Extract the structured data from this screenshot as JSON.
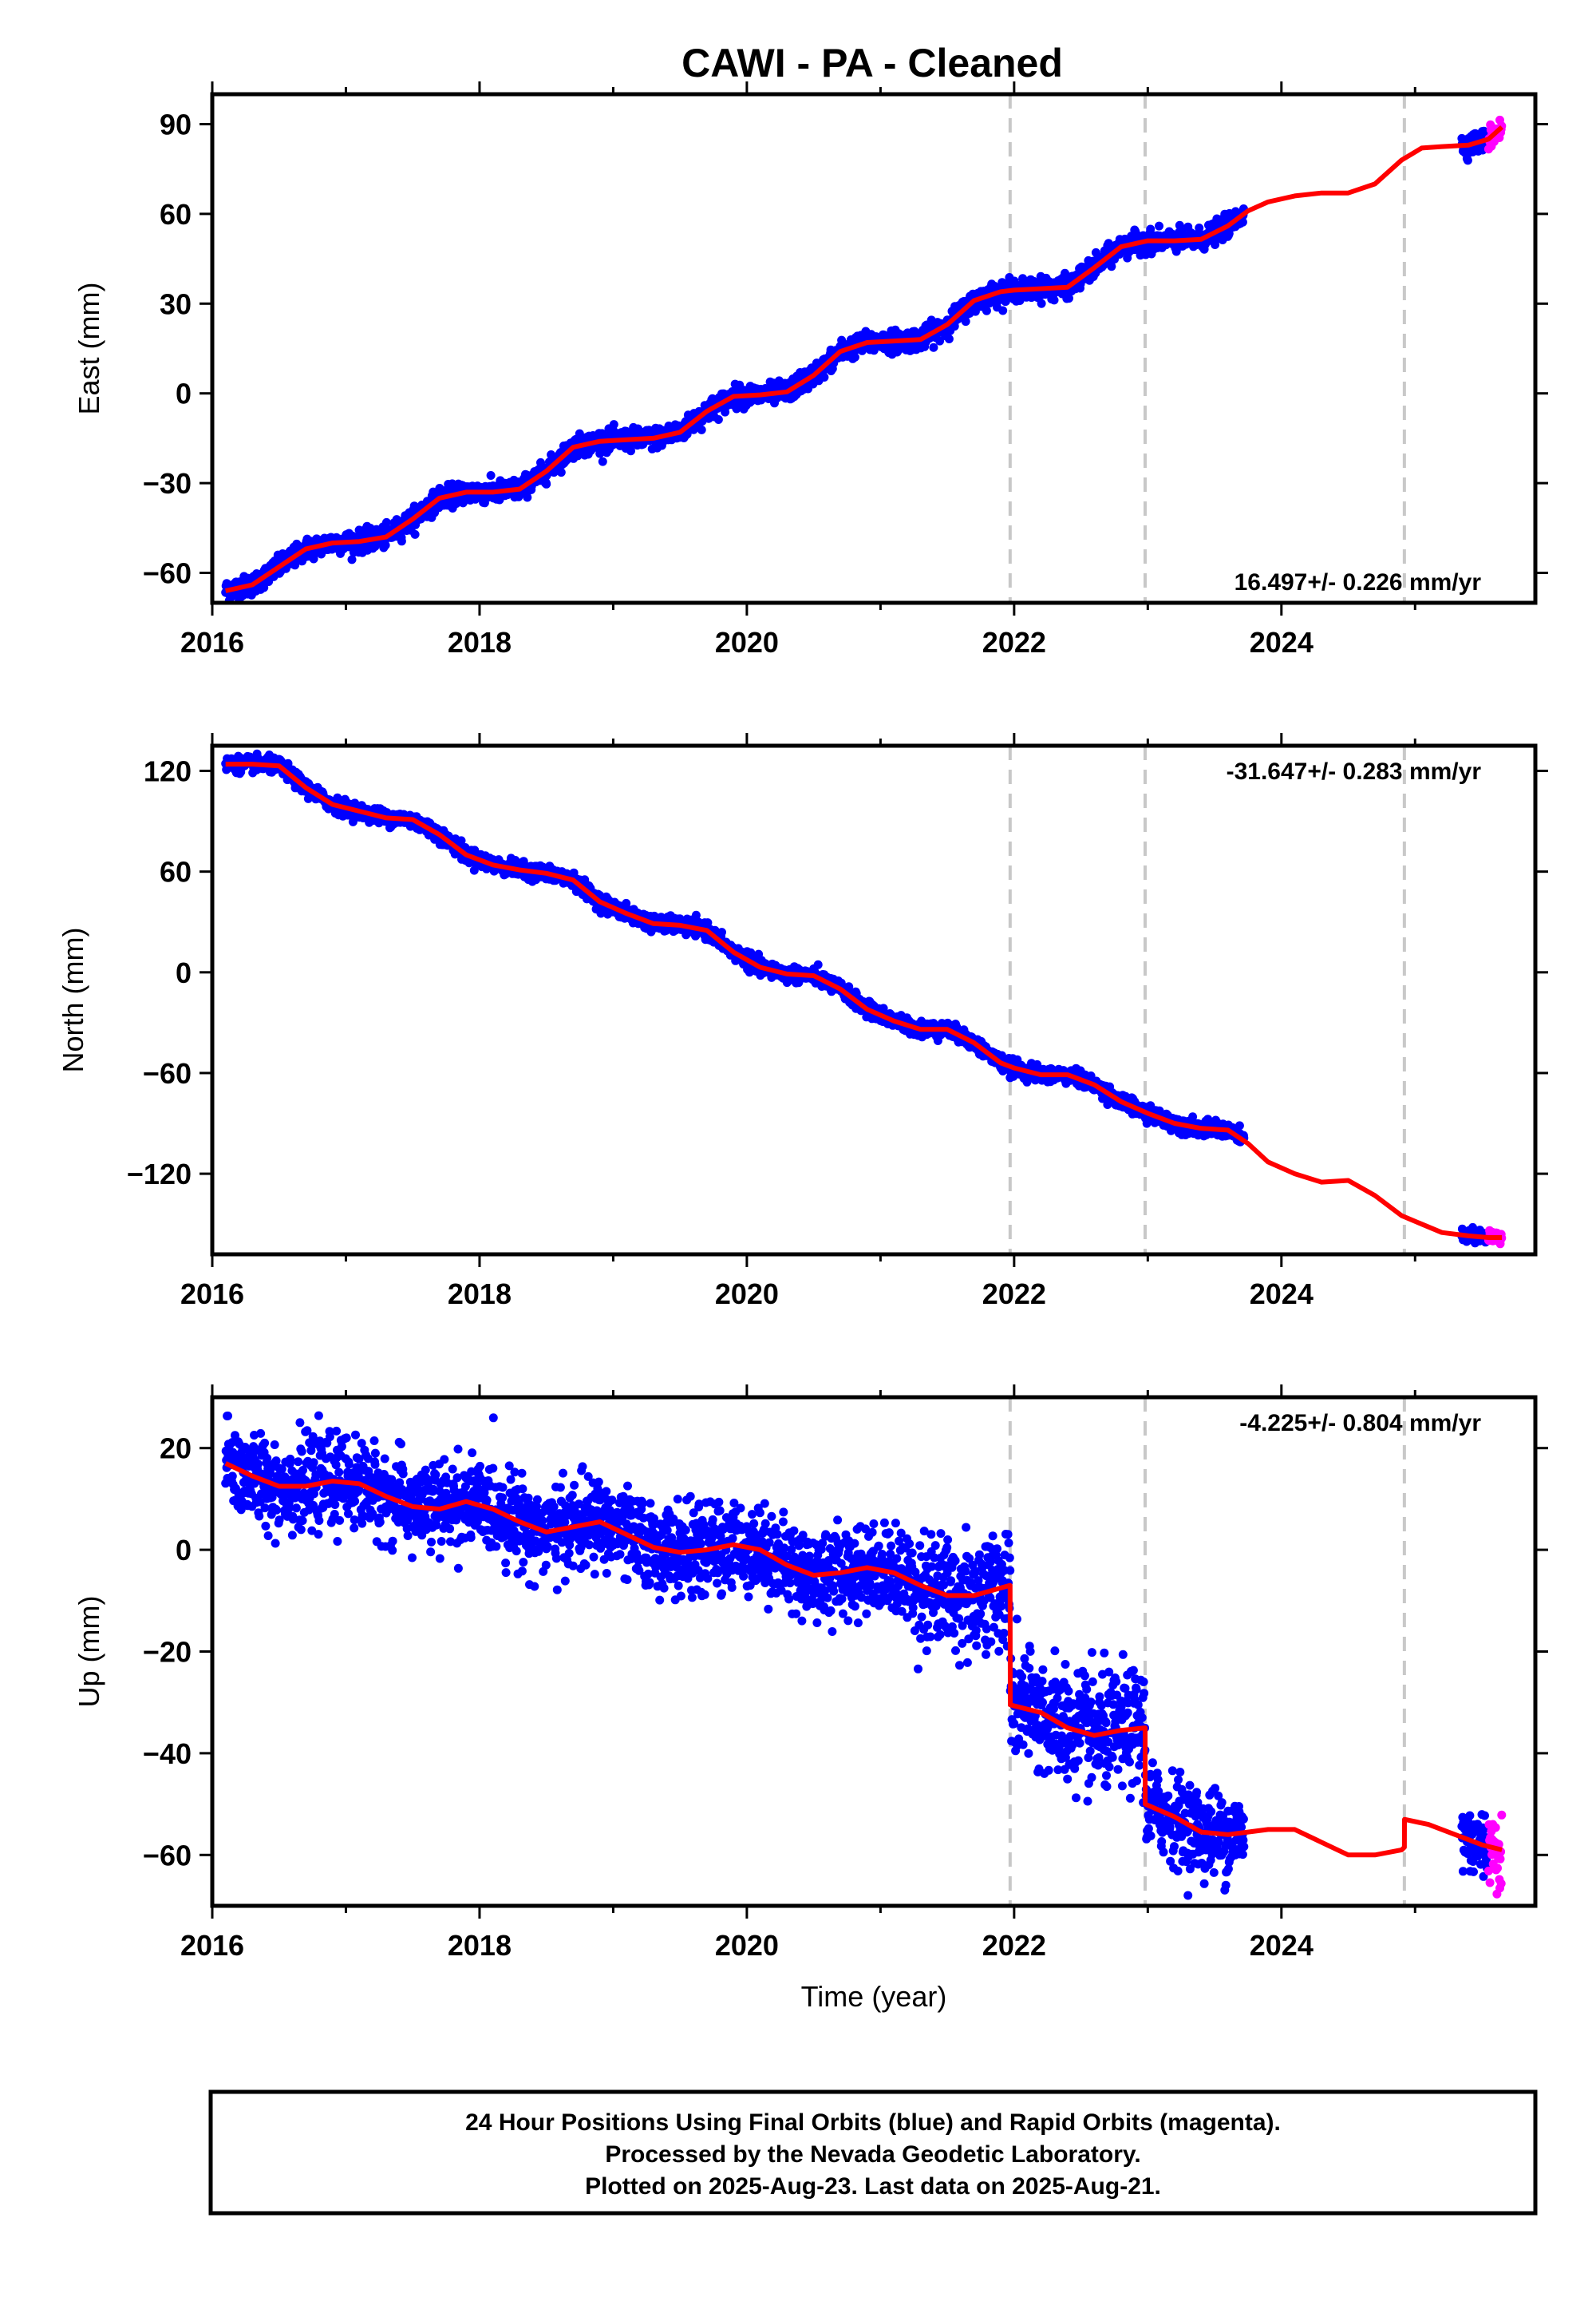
{
  "title": "CAWI  - PA - Cleaned",
  "colors": {
    "final_orbits": "#0000ff",
    "rapid_orbits": "#ff00ff",
    "model": "#ff0000",
    "event_lines": "#c8c8c8"
  },
  "footer": {
    "lines": [
      "24 Hour Positions Using Final Orbits (blue) and Rapid Orbits (magenta).",
      "Processed by the Nevada Geodetic Laboratory.",
      "Plotted on 2025-Aug-23. Last data on 2025-Aug-21."
    ]
  },
  "chart_data": [
    {
      "type": "scatter",
      "component": "east",
      "ylabel": "East (mm)",
      "xlabel": "",
      "xlim": [
        2016,
        2025.9
      ],
      "ylim": [
        -70,
        100
      ],
      "xticks": [
        2016,
        2018,
        2020,
        2022,
        2024
      ],
      "yticks": [
        -60,
        -30,
        0,
        30,
        60,
        90
      ],
      "rate_label": "16.497+/- 0.226 mm/yr",
      "rate_position": "bottom-right",
      "event_lines": [
        2021.97,
        2022.98,
        2024.92
      ],
      "model": {
        "name": "model",
        "x": [
          2016.1,
          2016.3,
          2016.5,
          2016.7,
          2016.9,
          2017.1,
          2017.3,
          2017.5,
          2017.7,
          2017.9,
          2018.1,
          2018.3,
          2018.5,
          2018.7,
          2018.9,
          2019.1,
          2019.3,
          2019.5,
          2019.7,
          2019.9,
          2020.1,
          2020.3,
          2020.5,
          2020.7,
          2020.9,
          2021.1,
          2021.3,
          2021.5,
          2021.7,
          2021.9,
          2022.0,
          2022.2,
          2022.4,
          2022.6,
          2022.8,
          2023.0,
          2023.2,
          2023.4,
          2023.6,
          2023.75,
          2023.9,
          2024.1,
          2024.3,
          2024.5,
          2024.7,
          2024.9,
          2025.05,
          2025.2,
          2025.4,
          2025.55,
          2025.65
        ],
        "y": [
          -66,
          -64,
          -58,
          -52,
          -50,
          -49.5,
          -48,
          -42,
          -35,
          -33,
          -33,
          -32,
          -26,
          -18,
          -16,
          -15.5,
          -15,
          -13,
          -6,
          -1,
          -0.5,
          0.5,
          6,
          14,
          17,
          17.5,
          18,
          23,
          31,
          34,
          34.5,
          35,
          35.5,
          42,
          49,
          51,
          51,
          51.5,
          56,
          61,
          64,
          66,
          67,
          67,
          70,
          78,
          82,
          82.5,
          83,
          85,
          89
        ]
      },
      "final_orbits": {
        "name": "Final Orbits",
        "x_range": [
          2016.1,
          2023.72
        ],
        "jitter_mm": 1.7
      },
      "final_orbits_late": {
        "name": "Final Orbits",
        "x_range": [
          2025.35,
          2025.55
        ],
        "jitter_mm": 1.7
      },
      "rapid_orbits": {
        "name": "Rapid Orbits",
        "x_range": [
          2025.55,
          2025.65
        ],
        "jitter_mm": 2.0
      }
    },
    {
      "type": "scatter",
      "component": "north",
      "ylabel": "North (mm)",
      "xlabel": "",
      "xlim": [
        2016,
        2025.9
      ],
      "ylim": [
        -168,
        135
      ],
      "xticks": [
        2016,
        2018,
        2020,
        2022,
        2024
      ],
      "yticks": [
        -120,
        -60,
        0,
        60,
        120
      ],
      "rate_label": "-31.647+/- 0.283 mm/yr",
      "rate_position": "top-right",
      "event_lines": [
        2021.97,
        2022.98,
        2024.92
      ],
      "model": {
        "name": "model",
        "x": [
          2016.1,
          2016.3,
          2016.5,
          2016.7,
          2016.9,
          2017.1,
          2017.3,
          2017.5,
          2017.7,
          2017.9,
          2018.1,
          2018.3,
          2018.5,
          2018.7,
          2018.9,
          2019.1,
          2019.3,
          2019.5,
          2019.7,
          2019.9,
          2020.1,
          2020.3,
          2020.5,
          2020.7,
          2020.9,
          2021.1,
          2021.3,
          2021.5,
          2021.7,
          2021.9,
          2022.0,
          2022.2,
          2022.4,
          2022.6,
          2022.8,
          2023.0,
          2023.2,
          2023.4,
          2023.6,
          2023.75,
          2023.9,
          2024.1,
          2024.3,
          2024.5,
          2024.7,
          2024.9,
          2025.05,
          2025.2,
          2025.4,
          2025.55,
          2025.65
        ],
        "y": [
          124,
          124,
          123,
          110,
          100,
          96,
          92,
          91,
          82,
          70,
          64,
          61,
          59,
          55,
          42,
          35,
          29,
          28,
          25,
          12,
          3,
          -1,
          -2,
          -10,
          -22,
          -29,
          -34,
          -34,
          -42,
          -54,
          -57,
          -61,
          -61,
          -67,
          -77,
          -84,
          -90,
          -93,
          -94,
          -102,
          -113,
          -120,
          -125,
          -124,
          -133,
          -145,
          -150,
          -155,
          -157,
          -158,
          -158
        ]
      },
      "final_orbits": {
        "name": "Final Orbits",
        "x_range": [
          2016.1,
          2023.72
        ],
        "jitter_mm": 2.2
      },
      "final_orbits_late": {
        "name": "Final Orbits",
        "x_range": [
          2025.35,
          2025.55
        ],
        "jitter_mm": 2.0
      },
      "rapid_orbits": {
        "name": "Rapid Orbits",
        "x_range": [
          2025.55,
          2025.65
        ],
        "jitter_mm": 2.5
      }
    },
    {
      "type": "scatter",
      "component": "up",
      "ylabel": "Up (mm)",
      "xlabel": "Time (year)",
      "xlim": [
        2016,
        2025.9
      ],
      "ylim": [
        -70,
        30
      ],
      "xticks": [
        2016,
        2018,
        2020,
        2022,
        2024
      ],
      "yticks": [
        -60,
        -40,
        -20,
        0,
        20
      ],
      "rate_label": "-4.225+/- 0.804 mm/yr",
      "rate_position": "top-right",
      "event_lines": [
        2021.97,
        2022.98,
        2024.92
      ],
      "model": {
        "name": "model",
        "x": [
          2016.1,
          2016.3,
          2016.5,
          2016.7,
          2016.9,
          2017.1,
          2017.3,
          2017.5,
          2017.7,
          2017.9,
          2018.1,
          2018.3,
          2018.5,
          2018.7,
          2018.9,
          2019.1,
          2019.3,
          2019.5,
          2019.7,
          2019.9,
          2020.1,
          2020.3,
          2020.5,
          2020.7,
          2020.9,
          2021.1,
          2021.3,
          2021.5,
          2021.7,
          2021.9,
          2021.97,
          2021.971,
          2022.2,
          2022.4,
          2022.6,
          2022.8,
          2022.98,
          2022.981,
          2023.2,
          2023.4,
          2023.6,
          2023.75,
          2023.9,
          2024.1,
          2024.3,
          2024.5,
          2024.7,
          2024.9,
          2024.92,
          2024.921,
          2025.1,
          2025.3,
          2025.5,
          2025.65
        ],
        "y": [
          17,
          14.5,
          12.5,
          12.5,
          13.5,
          13,
          10.5,
          8.5,
          8,
          9.5,
          8,
          5.5,
          3.5,
          4.5,
          5.5,
          3,
          0.5,
          -0.5,
          0,
          1,
          0,
          -3,
          -5,
          -4.5,
          -3.5,
          -4.5,
          -7,
          -9,
          -9,
          -7.5,
          -7,
          -30.5,
          -32,
          -35,
          -36.5,
          -35.5,
          -35,
          -50,
          -52.5,
          -55.5,
          -56,
          -55.5,
          -55,
          -55,
          -57.5,
          -60,
          -60,
          -59,
          -58.5,
          -53,
          -54,
          -56,
          -58,
          -59
        ]
      },
      "final_orbits": {
        "name": "Final Orbits",
        "x_range": [
          2016.1,
          2023.72
        ],
        "jitter_mm": 4.2
      },
      "final_orbits_late": {
        "name": "Final Orbits",
        "x_range": [
          2025.35,
          2025.55
        ],
        "jitter_mm": 3.5
      },
      "rapid_orbits": {
        "name": "Rapid Orbits",
        "x_range": [
          2025.55,
          2025.65
        ],
        "jitter_mm": 3.5
      }
    }
  ]
}
